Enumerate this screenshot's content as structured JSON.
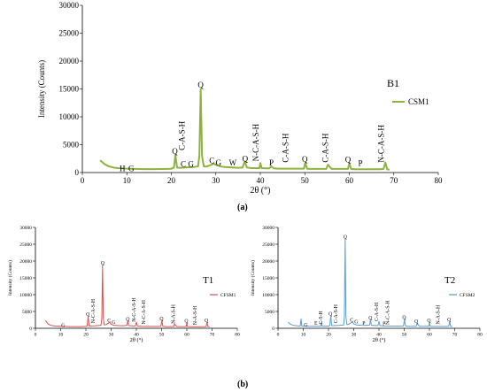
{
  "captions": {
    "a": "(a)",
    "b": "(b)"
  },
  "chart_data": [
    {
      "panel": "B1",
      "type": "line",
      "xlabel": "2θ (°)",
      "ylabel": "Intensity (Counts)",
      "xlim": [
        0,
        80
      ],
      "ylim": [
        0,
        30000
      ],
      "xticks": [
        0,
        10,
        20,
        30,
        40,
        50,
        60,
        70,
        80
      ],
      "yticks": [
        0,
        5000,
        10000,
        15000,
        20000,
        25000,
        30000
      ],
      "grid": false,
      "legend": "right",
      "series": [
        {
          "name": "CSM1",
          "color": "#8db33f",
          "x": [
            4,
            5,
            6,
            7,
            8,
            9,
            10,
            12,
            14,
            16,
            18,
            20,
            20.6,
            20.9,
            21.3,
            22,
            23,
            24,
            25,
            26,
            26.3,
            26.6,
            26.9,
            27.3,
            28,
            29,
            29.5,
            30,
            31,
            32,
            33,
            34,
            35,
            36,
            36.5,
            37,
            37.5,
            38,
            39,
            39.8,
            40,
            40.3,
            41,
            42,
            42.5,
            43,
            44,
            45,
            46,
            47,
            48,
            49,
            49.8,
            50.1,
            50.5,
            51,
            52,
            53,
            54,
            54.8,
            55.2,
            56,
            57,
            58,
            59,
            59.7,
            60,
            60.4,
            61,
            62,
            63,
            64,
            65,
            66,
            67,
            67.7,
            68.1,
            68.5,
            69
          ],
          "values": [
            2200,
            1500,
            1100,
            900,
            800,
            750,
            700,
            650,
            620,
            620,
            640,
            680,
            900,
            3200,
            900,
            850,
            900,
            950,
            1000,
            1100,
            3000,
            15000,
            3000,
            1100,
            1100,
            1400,
            1600,
            1400,
            1100,
            1000,
            950,
            900,
            850,
            900,
            2000,
            900,
            850,
            800,
            800,
            800,
            1700,
            800,
            750,
            750,
            1100,
            750,
            700,
            700,
            700,
            700,
            700,
            700,
            700,
            1800,
            700,
            650,
            650,
            650,
            650,
            650,
            1400,
            650,
            650,
            650,
            650,
            650,
            1700,
            650,
            600,
            600,
            600,
            600,
            600,
            600,
            600,
            650,
            1800,
            600,
            500
          ]
        }
      ],
      "annotations": [
        {
          "label": "H",
          "x": 9,
          "y": 200
        },
        {
          "label": "G",
          "x": 11,
          "y": 200
        },
        {
          "label": "Q",
          "x": 20.8,
          "y": 3300
        },
        {
          "label": "C-A-S-H",
          "x": 23,
          "y": 4000,
          "rotate": true
        },
        {
          "label": "C",
          "x": 22.7,
          "y": 1000
        },
        {
          "label": "G",
          "x": 24.4,
          "y": 1000
        },
        {
          "label": "Q",
          "x": 26.6,
          "y": 15200
        },
        {
          "label": "C",
          "x": 29.1,
          "y": 1700
        },
        {
          "label": "G",
          "x": 30.6,
          "y": 1300
        },
        {
          "label": "W",
          "x": 33.8,
          "y": 1300
        },
        {
          "label": "Q",
          "x": 36.6,
          "y": 2000
        },
        {
          "label": "N-C-A-S-H",
          "x": 39.6,
          "y": 2000,
          "rotate": true
        },
        {
          "label": "P",
          "x": 42.5,
          "y": 1300
        },
        {
          "label": "C-A-S-H",
          "x": 46.3,
          "y": 1800,
          "rotate": true
        },
        {
          "label": "Q",
          "x": 50,
          "y": 1900
        },
        {
          "label": "C-A-S-H",
          "x": 55.2,
          "y": 1800,
          "rotate": true
        },
        {
          "label": "Q",
          "x": 59.7,
          "y": 1800
        },
        {
          "label": "P",
          "x": 62.5,
          "y": 1200
        },
        {
          "label": "N-C-A-S-H",
          "x": 67.8,
          "y": 1800,
          "rotate": true
        }
      ]
    },
    {
      "panel": "T1",
      "type": "line",
      "xlabel": "2θ (°)",
      "ylabel": "Intensity (Counts)",
      "xlim": [
        0,
        80
      ],
      "ylim": [
        0,
        30000
      ],
      "xticks": [
        0,
        10,
        20,
        30,
        40,
        50,
        60,
        70,
        80
      ],
      "yticks": [
        0,
        5000,
        10000,
        15000,
        20000,
        25000,
        30000
      ],
      "grid": false,
      "legend": "right",
      "series": [
        {
          "name": "CFSM1",
          "color": "#d9534f",
          "x": [
            4,
            5,
            6,
            7,
            8,
            10,
            12,
            14,
            16,
            18,
            20,
            20.5,
            20.9,
            21.3,
            22,
            24,
            26,
            26.3,
            26.6,
            26.9,
            27.3,
            28,
            29.5,
            30,
            31,
            33,
            35,
            36.3,
            36.6,
            37,
            39,
            39.6,
            40,
            40.4,
            42,
            44,
            46,
            48,
            49.7,
            50.1,
            50.5,
            52,
            54,
            54.8,
            55.1,
            56,
            58,
            59.7,
            60,
            60.3,
            62,
            64,
            66,
            67.6,
            68,
            68.4,
            69
          ],
          "values": [
            2300,
            1300,
            900,
            750,
            650,
            600,
            550,
            500,
            500,
            500,
            550,
            700,
            3500,
            700,
            700,
            750,
            900,
            3000,
            18800,
            3000,
            1000,
            1100,
            1800,
            1200,
            900,
            800,
            750,
            900,
            2200,
            800,
            700,
            700,
            1800,
            700,
            600,
            550,
            550,
            550,
            600,
            2300,
            600,
            500,
            500,
            500,
            1300,
            500,
            500,
            500,
            1600,
            500,
            450,
            450,
            450,
            500,
            1700,
            500,
            450
          ]
        }
      ],
      "annotations": [
        {
          "label": "G",
          "x": 11,
          "y": 400
        },
        {
          "label": "Q",
          "x": 20.8,
          "y": 3700
        },
        {
          "label": "N-C-A-S-H",
          "x": 23.5,
          "y": 1500,
          "rotate": true
        },
        {
          "label": "Q",
          "x": 26.6,
          "y": 19000
        },
        {
          "label": "C",
          "x": 29.2,
          "y": 1900
        },
        {
          "label": "G",
          "x": 31,
          "y": 1300
        },
        {
          "label": "Q",
          "x": 36.6,
          "y": 2300
        },
        {
          "label": "N-C-A-S-H",
          "x": 39.6,
          "y": 1900,
          "rotate": true
        },
        {
          "label": "N-C-A-S-H",
          "x": 43.5,
          "y": 1200,
          "rotate": true
        },
        {
          "label": "Q",
          "x": 50,
          "y": 2400
        },
        {
          "label": "N-A-S-H",
          "x": 55.2,
          "y": 1400,
          "rotate": true
        },
        {
          "label": "Q",
          "x": 59.8,
          "y": 1700
        },
        {
          "label": "N-A-S-H",
          "x": 63.8,
          "y": 1000,
          "rotate": true
        },
        {
          "label": "Q",
          "x": 67.8,
          "y": 1800
        }
      ]
    },
    {
      "panel": "T2",
      "type": "line",
      "xlabel": "2θ (°)",
      "ylabel": "Intensity (Counts)",
      "xlim": [
        0,
        80
      ],
      "ylim": [
        0,
        30000
      ],
      "xticks": [
        0,
        10,
        20,
        30,
        40,
        50,
        60,
        70,
        80
      ],
      "yticks": [
        0,
        5000,
        10000,
        15000,
        20000,
        25000,
        30000
      ],
      "grid": false,
      "legend": "right",
      "series": [
        {
          "name": "CFSM2",
          "color": "#5b9bd5",
          "x": [
            4,
            5,
            6,
            7,
            8,
            8.8,
            9.1,
            9.4,
            10,
            12,
            14,
            16,
            16.9,
            17.2,
            17.5,
            18,
            20,
            20.5,
            20.9,
            21.3,
            22,
            24,
            26,
            26.3,
            26.6,
            26.9,
            27.3,
            28,
            29.5,
            30,
            31,
            33,
            35,
            36.3,
            36.6,
            37,
            39,
            39.6,
            40,
            40.4,
            42,
            44,
            46,
            48,
            49.7,
            50.1,
            50.5,
            52,
            54,
            54.8,
            55.1,
            56,
            58,
            59.7,
            60,
            60.3,
            62,
            64,
            66,
            67.6,
            68,
            68.4,
            69
          ],
          "values": [
            1800,
            1200,
            900,
            800,
            700,
            700,
            2800,
            700,
            650,
            600,
            600,
            600,
            600,
            1800,
            600,
            600,
            650,
            800,
            3600,
            800,
            800,
            850,
            1000,
            3500,
            26500,
            3500,
            1100,
            1200,
            1900,
            1300,
            1000,
            900,
            850,
            1000,
            2500,
            900,
            800,
            800,
            2000,
            800,
            700,
            650,
            650,
            650,
            700,
            2600,
            700,
            600,
            600,
            600,
            1500,
            600,
            600,
            600,
            1800,
            600,
            550,
            550,
            550,
            600,
            2000,
            600,
            500
          ]
        }
      ],
      "annotations": [
        {
          "label": "G",
          "x": 11,
          "y": 500
        },
        {
          "label": "E",
          "x": 15,
          "y": 1000
        },
        {
          "label": "C-S-H",
          "x": 17.5,
          "y": 1200,
          "rotate": true
        },
        {
          "label": "Q",
          "x": 20.8,
          "y": 3800
        },
        {
          "label": "C-A-S-H",
          "x": 23.5,
          "y": 1500,
          "rotate": true
        },
        {
          "label": "Q",
          "x": 26.6,
          "y": 26700
        },
        {
          "label": "C",
          "x": 29.2,
          "y": 2000
        },
        {
          "label": "G",
          "x": 31,
          "y": 1400
        },
        {
          "label": "P",
          "x": 34,
          "y": 1100
        },
        {
          "label": "Q",
          "x": 36.6,
          "y": 2600
        },
        {
          "label": "C-A-S-H",
          "x": 39.6,
          "y": 2100,
          "rotate": true
        },
        {
          "label": "P",
          "x": 42,
          "y": 900
        },
        {
          "label": "N-C-A-S-H",
          "x": 44,
          "y": 1100,
          "rotate": true
        },
        {
          "label": "Q",
          "x": 50,
          "y": 2700
        },
        {
          "label": "Q",
          "x": 54.8,
          "y": 1600
        },
        {
          "label": "Q",
          "x": 59.8,
          "y": 1900
        },
        {
          "label": "N-A-S-H",
          "x": 64,
          "y": 1200,
          "rotate": true
        },
        {
          "label": "Q",
          "x": 67.8,
          "y": 2100
        }
      ]
    }
  ]
}
